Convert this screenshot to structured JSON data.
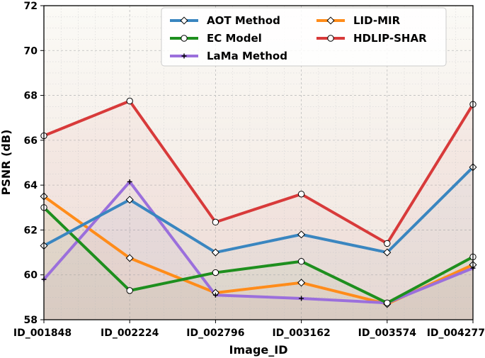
{
  "chart_data": {
    "type": "line",
    "xlabel": "Image_ID",
    "ylabel": "PSNR (dB)",
    "ylim": [
      58,
      72
    ],
    "yticks": [
      58,
      60,
      62,
      64,
      66,
      68,
      70,
      72
    ],
    "grid": true,
    "legend_position": "top-right",
    "categories": [
      "ID_001848",
      "ID_002224",
      "ID_002796",
      "ID_003162",
      "ID_003574",
      "ID_004277"
    ],
    "series": [
      {
        "name": "LID-MIR",
        "color": "#ff8c1a",
        "marker": "diamond",
        "values": [
          63.5,
          60.75,
          59.2,
          59.65,
          58.7,
          60.45
        ]
      },
      {
        "name": "LaMa Method",
        "color": "#9b6fdc",
        "marker": "plus",
        "values": [
          59.8,
          64.15,
          59.1,
          58.95,
          58.75,
          60.3
        ]
      },
      {
        "name": "EC Model",
        "color": "#1e8f1e",
        "marker": "circle",
        "values": [
          63.0,
          59.3,
          60.1,
          60.6,
          58.75,
          60.8
        ]
      },
      {
        "name": "AOT Method",
        "color": "#3a86c0",
        "marker": "diamond",
        "values": [
          61.3,
          63.35,
          61.0,
          61.8,
          61.0,
          64.8
        ]
      },
      {
        "name": "HDLIP-SHAR",
        "color": "#d83a3a",
        "marker": "circle",
        "values": [
          66.2,
          67.75,
          62.35,
          63.6,
          61.4,
          67.6
        ]
      }
    ],
    "legend_order": [
      "AOT Method",
      "LID-MIR",
      "EC Model",
      "HDLIP-SHAR",
      "LaMa Method"
    ]
  }
}
